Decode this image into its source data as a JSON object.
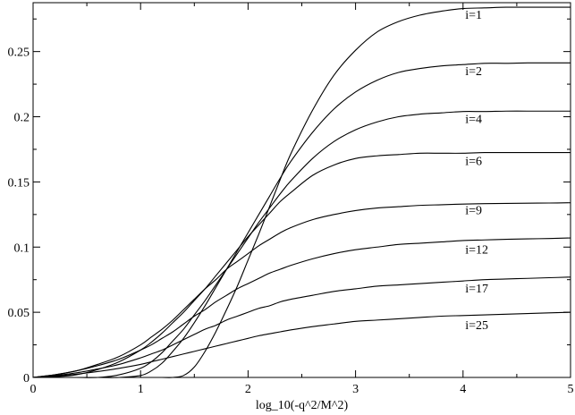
{
  "chart_data": {
    "type": "line",
    "title": "",
    "xlabel": "log_10(-q^2/M^2)",
    "ylabel": "",
    "xlim": [
      0,
      5
    ],
    "ylim": [
      0,
      0.2875
    ],
    "x_ticks": [
      "0",
      "1",
      "2",
      "3",
      "4",
      "5"
    ],
    "y_ticks": [
      "0",
      "0.05",
      "0.1",
      "0.15",
      "0.2",
      "0.25"
    ],
    "grid": false,
    "line_color": "#000000",
    "x": [
      0,
      0.2,
      0.4,
      0.6,
      0.8,
      1.0,
      1.1,
      1.2,
      1.3,
      1.4,
      1.5,
      1.6,
      1.7,
      1.8,
      1.9,
      2.0,
      2.1,
      2.2,
      2.3,
      2.4,
      2.6,
      2.8,
      3.0,
      3.2,
      3.4,
      3.6,
      3.8,
      4.0,
      4.2,
      4.4,
      4.6,
      4.8,
      5.0
    ],
    "series": [
      {
        "name": "i=1",
        "label": "i=1",
        "label_y": 0.2785,
        "values": [
          0,
          0,
          0,
          0,
          0,
          0,
          0,
          0,
          0,
          0.0015,
          0.008,
          0.02,
          0.035,
          0.052,
          0.07,
          0.09,
          0.11,
          0.131,
          0.152,
          0.172,
          0.205,
          0.232,
          0.251,
          0.265,
          0.273,
          0.278,
          0.281,
          0.283,
          0.2835,
          0.284,
          0.284,
          0.284,
          0.284
        ]
      },
      {
        "name": "i=2",
        "label": "i=2",
        "label_y": 0.2355,
        "values": [
          0,
          0,
          0,
          0,
          0,
          0.0015,
          0.005,
          0.011,
          0.02,
          0.03,
          0.042,
          0.055,
          0.069,
          0.083,
          0.097,
          0.111,
          0.125,
          0.139,
          0.153,
          0.166,
          0.188,
          0.206,
          0.219,
          0.228,
          0.234,
          0.237,
          0.239,
          0.24,
          0.241,
          0.241,
          0.2413,
          0.2413,
          0.2413
        ]
      },
      {
        "name": "i=4",
        "label": "i=4",
        "label_y": 0.1985,
        "values": [
          0,
          0,
          0,
          0,
          0.002,
          0.007,
          0.012,
          0.019,
          0.028,
          0.037,
          0.048,
          0.059,
          0.071,
          0.083,
          0.095,
          0.107,
          0.119,
          0.13,
          0.141,
          0.151,
          0.168,
          0.181,
          0.19,
          0.196,
          0.2,
          0.202,
          0.203,
          0.204,
          0.204,
          0.2043,
          0.2043,
          0.2043,
          0.2043
        ]
      },
      {
        "name": "i=6",
        "label": "i=6",
        "label_y": 0.1665,
        "values": [
          0,
          0.0005,
          0.002,
          0.006,
          0.012,
          0.021,
          0.027,
          0.034,
          0.042,
          0.05,
          0.059,
          0.068,
          0.078,
          0.088,
          0.098,
          0.108,
          0.117,
          0.126,
          0.135,
          0.142,
          0.155,
          0.163,
          0.168,
          0.17,
          0.171,
          0.172,
          0.172,
          0.172,
          0.1725,
          0.1725,
          0.1725,
          0.1725,
          0.1725
        ]
      },
      {
        "name": "i=9",
        "label": "i=9",
        "label_y": 0.1285,
        "values": [
          0,
          0.002,
          0.005,
          0.01,
          0.016,
          0.025,
          0.031,
          0.037,
          0.044,
          0.052,
          0.06,
          0.068,
          0.075,
          0.083,
          0.089,
          0.095,
          0.101,
          0.106,
          0.111,
          0.115,
          0.121,
          0.125,
          0.128,
          0.13,
          0.131,
          0.132,
          0.1325,
          0.133,
          0.1333,
          0.1335,
          0.1337,
          0.1338,
          0.134
        ]
      },
      {
        "name": "i=12",
        "label": "i=12",
        "label_y": 0.0985,
        "values": [
          0,
          0.002,
          0.005,
          0.009,
          0.014,
          0.021,
          0.025,
          0.03,
          0.035,
          0.041,
          0.047,
          0.052,
          0.058,
          0.063,
          0.068,
          0.072,
          0.076,
          0.08,
          0.083,
          0.086,
          0.091,
          0.095,
          0.098,
          0.1,
          0.102,
          0.103,
          0.104,
          0.105,
          0.1055,
          0.106,
          0.1063,
          0.1066,
          0.107
        ]
      },
      {
        "name": "i=17",
        "label": "i=17",
        "label_y": 0.0685,
        "values": [
          0,
          0.0015,
          0.0035,
          0.0065,
          0.01,
          0.015,
          0.018,
          0.021,
          0.025,
          0.029,
          0.033,
          0.037,
          0.04,
          0.044,
          0.047,
          0.05,
          0.053,
          0.055,
          0.058,
          0.06,
          0.063,
          0.066,
          0.068,
          0.07,
          0.071,
          0.072,
          0.073,
          0.074,
          0.075,
          0.0755,
          0.076,
          0.0765,
          0.077
        ]
      },
      {
        "name": "i=25",
        "label": "i=25",
        "label_y": 0.0405,
        "values": [
          0,
          0.001,
          0.0025,
          0.0045,
          0.007,
          0.01,
          0.012,
          0.014,
          0.016,
          0.018,
          0.02,
          0.022,
          0.024,
          0.026,
          0.028,
          0.03,
          0.032,
          0.0335,
          0.035,
          0.0365,
          0.039,
          0.041,
          0.043,
          0.044,
          0.045,
          0.046,
          0.047,
          0.0475,
          0.048,
          0.0485,
          0.049,
          0.0495,
          0.05
        ]
      }
    ]
  }
}
